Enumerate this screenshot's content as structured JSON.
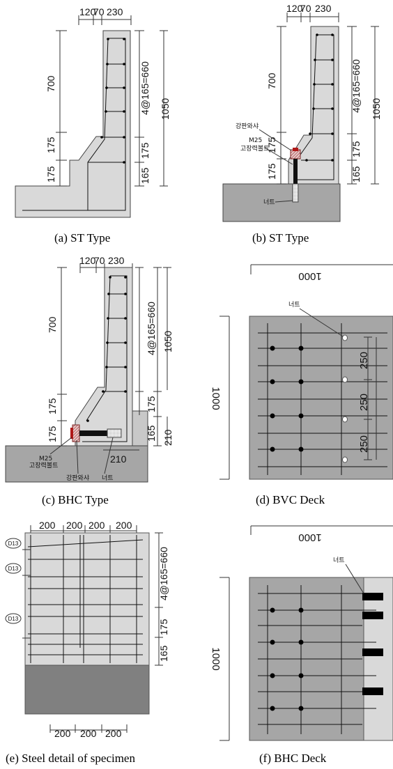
{
  "panels": {
    "a": {
      "caption": "(a) ST Type",
      "top_dims": [
        "120",
        "70",
        "230"
      ],
      "left_dims": [
        "700",
        "175",
        "175"
      ],
      "right_dims": [
        "4@165=660",
        "175",
        "165"
      ],
      "total_dim": "1050"
    },
    "b": {
      "caption": "(b) ST Type",
      "top_dims": [
        "120",
        "70",
        "230"
      ],
      "left_dims": [
        "700",
        "175",
        "175"
      ],
      "right_dims": [
        "4@165=660",
        "175",
        "165"
      ],
      "total_dim": "1050",
      "notes": {
        "washer": "강판와샤",
        "bolt_grade": "M25",
        "bolt": "고장력볼트",
        "nut": "너트"
      }
    },
    "c": {
      "caption": "(c) BHC Type",
      "top_dims": [
        "120",
        "70",
        "230"
      ],
      "left_dims": [
        "700",
        "175",
        "175"
      ],
      "right_dims": [
        "4@165=660",
        "175",
        "165"
      ],
      "total_dim": "1050",
      "block_height": "210",
      "block_width": "210",
      "notes": {
        "bolt_grade": "M25",
        "bolt": "고장력볼트",
        "washer": "강판와샤",
        "nut": "너트"
      }
    },
    "d": {
      "caption": "(d) BVC Deck",
      "width_dim": "1000",
      "height_dim": "1000",
      "spacing": [
        "250",
        "250",
        "250"
      ],
      "nut_label": "너트"
    },
    "e": {
      "caption": "(e) Steel detail of specimen",
      "top_spacing": [
        "200",
        "200",
        "200",
        "200"
      ],
      "bottom_spacing": [
        "200",
        "200",
        "200"
      ],
      "bar_tags": [
        "D13",
        "D13",
        "D13"
      ],
      "right_dims": [
        "4@165=660",
        "175",
        "165"
      ]
    },
    "f": {
      "caption": "(f) BHC Deck",
      "width_dim": "1000",
      "height_dim": "1000",
      "nut_label": "너트"
    }
  },
  "colors": {
    "concrete": "#d9d9d9",
    "deck": "#a6a6a6",
    "base": "#a6a6a6",
    "block": "#c8c8c8",
    "bolt_red": "#b01818",
    "washer_hatch": "#a04040",
    "steel_dark": "#111111"
  }
}
